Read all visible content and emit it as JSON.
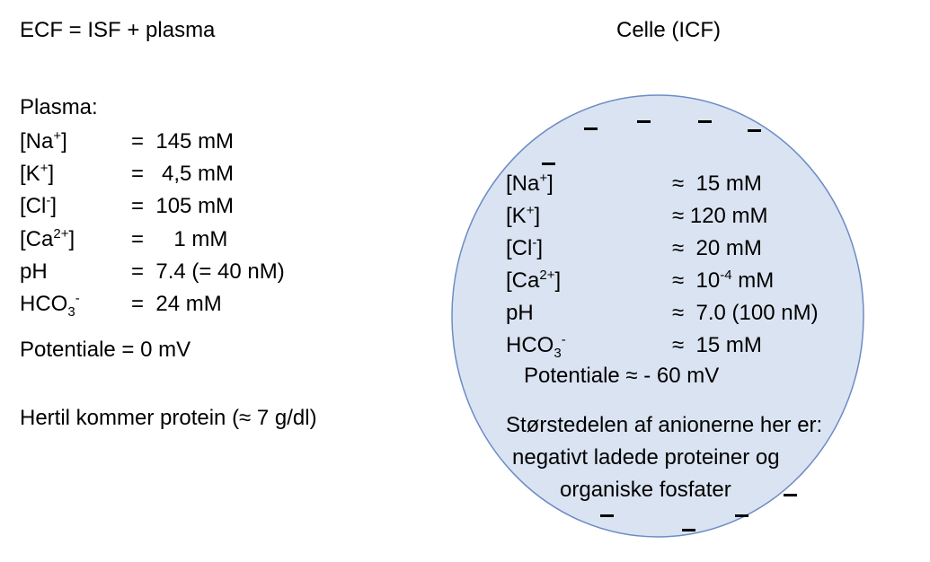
{
  "left": {
    "header": "ECF = ISF + plasma",
    "section_title": "Plasma:",
    "rows": [
      {
        "label": "[Na",
        "sup": "+",
        "sub": "",
        "close": "]",
        "value": "=  145 mM"
      },
      {
        "label": "[K",
        "sup": "+",
        "sub": "",
        "close": "]",
        "value": "=   4,5 mM"
      },
      {
        "label": "[Cl",
        "sup": "-",
        "sub": "",
        "close": "]",
        "value": "=  105 mM"
      },
      {
        "label": "[Ca",
        "sup": "2+",
        "sub": "",
        "close": "]",
        "value": "=     1 mM"
      },
      {
        "label": "pH",
        "sup": "",
        "sub": "",
        "close": "",
        "value": "=  7.4 (= 40 nM)"
      },
      {
        "label": "HCO",
        "sub": "3",
        "sup": "-",
        "close": "",
        "value": "=  24 mM"
      }
    ],
    "potential": "Potentiale = 0 mV",
    "protein_note": "Hertil kommer protein (≈ 7 g/dl)"
  },
  "cell": {
    "title": "Celle (ICF)",
    "fill_color": "#dae3f1",
    "stroke_color": "#6b8cc5",
    "rows": [
      {
        "label": "[Na",
        "sup": "+",
        "sub": "",
        "close": "]",
        "value": "≈  15 mM",
        "value_sup": "",
        "value_after": ""
      },
      {
        "label": "[K",
        "sup": "+",
        "sub": "",
        "close": "]",
        "value": "≈ 120 mM",
        "value_sup": "",
        "value_after": ""
      },
      {
        "label": "[Cl",
        "sup": "-",
        "sub": "",
        "close": "]",
        "value": "≈  20 mM",
        "value_sup": "",
        "value_after": ""
      },
      {
        "label": "[Ca",
        "sup": "2+",
        "sub": "",
        "close": "]",
        "value": "≈  10",
        "value_sup": "-4",
        "value_after": " mM"
      },
      {
        "label": "pH",
        "sup": "",
        "sub": "",
        "close": "",
        "value": "≈  7.0 (100 nM)",
        "value_sup": "",
        "value_after": ""
      },
      {
        "label": "HCO",
        "sub": "3",
        "sup": "-",
        "close": "",
        "value": "≈  15 mM",
        "value_sup": "",
        "value_after": ""
      }
    ],
    "potential": "Potentiale ≈  - 60 mV",
    "anion_note_line1": "Størstedelen af anionerne her er:",
    "anion_note_line2": "negativt ladede proteiner og",
    "anion_note_line3": "organiske fosfater"
  }
}
